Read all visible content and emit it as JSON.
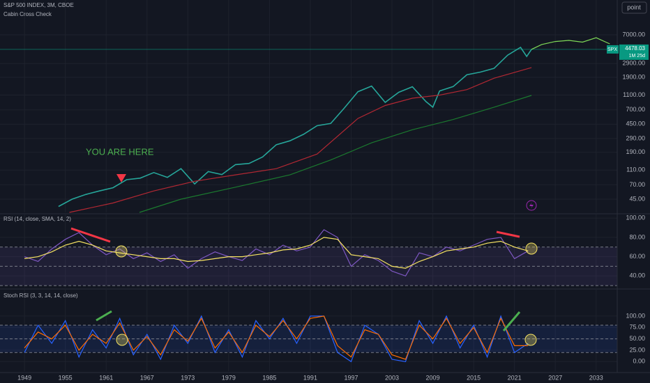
{
  "toolbar": {
    "button": "point"
  },
  "chart_data": [
    {
      "type": "line",
      "title": "S&P 500 INDEX, 3M, CBOE",
      "subtitle": "Cabin Cross Check",
      "annotation": "YOU ARE HERE",
      "log_scale": true,
      "xlim": [
        1945.4,
        2036.1
      ],
      "ylim": [
        30,
        20400
      ],
      "yticks": [
        {
          "value": 7000,
          "label": "7000.00"
        },
        {
          "value": 2900,
          "label": "2900.00"
        },
        {
          "value": 1900,
          "label": "1900.00"
        },
        {
          "value": 1100,
          "label": "1100.00"
        },
        {
          "value": 700,
          "label": "700.00"
        },
        {
          "value": 450,
          "label": "450.00"
        },
        {
          "value": 290,
          "label": "290.00"
        },
        {
          "value": 190,
          "label": "190.00"
        },
        {
          "value": 110,
          "label": "110.00"
        },
        {
          "value": 70,
          "label": "70.00"
        },
        {
          "value": 45,
          "label": "45.00"
        }
      ],
      "symbol": "SPX",
      "last_price": 4478.03,
      "countdown": "1M 25d",
      "last_price_color": "#089981",
      "series": [
        {
          "color": "#26a69a",
          "x": [
            1954,
            1956,
            1958,
            1960,
            1962,
            1964,
            1966,
            1968,
            1970,
            1972,
            1974,
            1976,
            1978,
            1980,
            1982,
            1984,
            1986,
            1988,
            1990,
            1992,
            1994,
            1996,
            1998,
            2000,
            2002,
            2004,
            2006,
            2008,
            2009,
            2010,
            2012,
            2014,
            2016,
            2018,
            2020,
            2021.9,
            2022.8,
            2023.5
          ],
          "values": [
            36,
            45,
            52,
            58,
            64,
            82,
            86,
            102,
            88,
            115,
            72,
            105,
            96,
            130,
            135,
            165,
            240,
            270,
            330,
            430,
            460,
            740,
            1220,
            1450,
            880,
            1200,
            1420,
            900,
            760,
            1250,
            1430,
            2050,
            2230,
            2500,
            3750,
            4770,
            3600,
            4478.03
          ]
        },
        {
          "color": "#b22833",
          "x": [
            1955.6,
            1962,
            1968,
            1974,
            1980,
            1986,
            1992,
            1998,
            2002,
            2006,
            2010,
            2014,
            2018,
            2023.5
          ],
          "values": [
            30,
            40,
            58,
            78,
            95,
            115,
            180,
            537,
            800,
            1000,
            1100,
            1300,
            1850,
            2560
          ]
        },
        {
          "color": "#1b7a2f",
          "x": [
            1965.9,
            1972,
            1980,
            1988,
            1994,
            2000,
            2006,
            2012,
            2018,
            2023.5
          ],
          "values": [
            30,
            45,
            65,
            95,
            150,
            254,
            380,
            520,
            760,
            1090
          ]
        },
        {
          "color": "#7ed957",
          "x": [
            2023.5,
            2025,
            2027,
            2029,
            2031,
            2033,
            2035
          ],
          "values": [
            4478.03,
            5200,
            5700,
            5900,
            5600,
            6400,
            5300
          ]
        }
      ]
    },
    {
      "type": "line",
      "title": "RSI (14, close, SMA, 14, 2)",
      "xlim": [
        1945.4,
        2036.1
      ],
      "ylim": [
        27.9,
        103.8
      ],
      "yticks": [
        {
          "value": 100,
          "label": "100.00"
        },
        {
          "value": 80,
          "label": "80.00"
        },
        {
          "value": 60,
          "label": "60.00"
        },
        {
          "value": 40,
          "label": "40.00"
        }
      ],
      "bands": [
        70,
        50,
        30
      ],
      "band_color": "#7e57c2",
      "series": [
        {
          "color": "#7e57c2",
          "x": [
            1949,
            1951,
            1953,
            1955,
            1957,
            1959,
            1961,
            1963,
            1965,
            1967,
            1969,
            1971,
            1973,
            1975,
            1977,
            1979,
            1981,
            1983,
            1985,
            1987,
            1989,
            1991,
            1993,
            1995,
            1997,
            1999,
            2001,
            2003,
            2005,
            2007,
            2009,
            2011,
            2013,
            2015,
            2017,
            2019,
            2021,
            2023
          ],
          "values": [
            60,
            55,
            68,
            78,
            85,
            72,
            62,
            68,
            58,
            64,
            55,
            62,
            48,
            58,
            65,
            60,
            56,
            68,
            62,
            72,
            66,
            70,
            88,
            80,
            50,
            62,
            56,
            45,
            40,
            64,
            60,
            70,
            66,
            72,
            78,
            80,
            58,
            66
          ]
        },
        {
          "color": "#f7e463",
          "x": [
            1949,
            1951,
            1953,
            1955,
            1957,
            1959,
            1961,
            1963,
            1965,
            1967,
            1969,
            1971,
            1973,
            1975,
            1977,
            1979,
            1981,
            1983,
            1985,
            1987,
            1989,
            1991,
            1993,
            1995,
            1997,
            1999,
            2001,
            2003,
            2005,
            2007,
            2009,
            2011,
            2013,
            2015,
            2017,
            2019,
            2021,
            2023
          ],
          "values": [
            58,
            60,
            65,
            72,
            76,
            72,
            66,
            64,
            62,
            60,
            58,
            58,
            55,
            56,
            58,
            60,
            60,
            62,
            64,
            67,
            68,
            72,
            80,
            78,
            62,
            60,
            58,
            50,
            48,
            55,
            60,
            66,
            68,
            70,
            74,
            76,
            70,
            66
          ]
        }
      ]
    },
    {
      "type": "line",
      "title": "Stoch RSI (3, 3, 14, 14, close)",
      "xlim": [
        1945.4,
        2036.1
      ],
      "ylim": [
        -21,
        158
      ],
      "yticks": [
        {
          "value": 100,
          "label": "100.00"
        },
        {
          "value": 75,
          "label": "75.00"
        },
        {
          "value": 50,
          "label": "50.00"
        },
        {
          "value": 25,
          "label": "25.00"
        },
        {
          "value": 0,
          "label": "0.00"
        }
      ],
      "bands": [
        80,
        50,
        20
      ],
      "band_color": "#2962ff",
      "xticks": [
        1949,
        1955,
        1961,
        1967,
        1973,
        1979,
        1985,
        1991,
        1997,
        2003,
        2009,
        2015,
        2021,
        2027,
        2033
      ],
      "series": [
        {
          "color": "#2962ff",
          "x": [
            1949,
            1951,
            1953,
            1955,
            1957,
            1959,
            1961,
            1963,
            1965,
            1967,
            1969,
            1971,
            1973,
            1975,
            1977,
            1979,
            1981,
            1983,
            1985,
            1987,
            1989,
            1991,
            1993,
            1995,
            1997,
            1999,
            2001,
            2003,
            2005,
            2007,
            2009,
            2011,
            2013,
            2015,
            2017,
            2019,
            2021,
            2023
          ],
          "values": [
            20,
            80,
            40,
            90,
            10,
            70,
            30,
            95,
            15,
            60,
            5,
            80,
            40,
            100,
            20,
            70,
            10,
            90,
            50,
            95,
            40,
            100,
            100,
            20,
            0,
            80,
            60,
            5,
            0,
            90,
            40,
            100,
            30,
            80,
            10,
            100,
            20,
            40
          ]
        },
        {
          "color": "#ff6d00",
          "x": [
            1949,
            1951,
            1953,
            1955,
            1957,
            1959,
            1961,
            1963,
            1965,
            1967,
            1969,
            1971,
            1973,
            1975,
            1977,
            1979,
            1981,
            1983,
            1985,
            1987,
            1989,
            1991,
            1993,
            1995,
            1997,
            1999,
            2001,
            2003,
            2005,
            2007,
            2009,
            2011,
            2013,
            2015,
            2017,
            2019,
            2021,
            2023
          ],
          "values": [
            30,
            65,
            50,
            80,
            25,
            60,
            40,
            85,
            25,
            55,
            15,
            70,
            45,
            95,
            30,
            65,
            20,
            80,
            55,
            90,
            50,
            95,
            100,
            35,
            10,
            70,
            60,
            15,
            5,
            80,
            50,
            95,
            40,
            75,
            20,
            95,
            35,
            35
          ]
        }
      ]
    }
  ]
}
